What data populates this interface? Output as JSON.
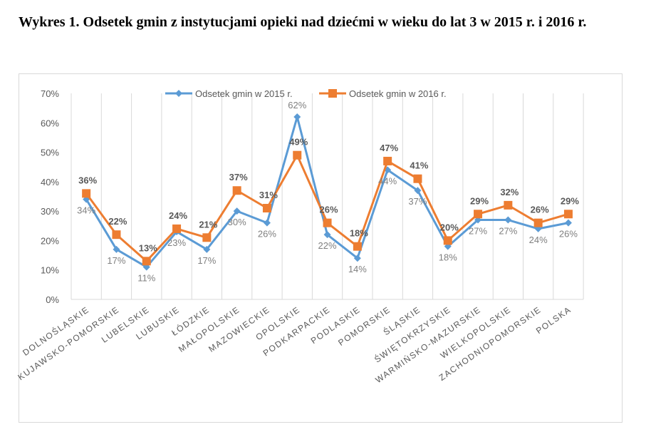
{
  "page": {
    "title": "Wykres 1. Odsetek gmin z instytucjami opieki nad dziećmi w wieku do lat 3 w 2015 r. i 2016 r."
  },
  "chart_data": {
    "type": "line",
    "title": "",
    "xlabel": "",
    "ylabel": "",
    "ylim": [
      0,
      70
    ],
    "y_ticks": [
      "0%",
      "10%",
      "20%",
      "30%",
      "40%",
      "50%",
      "60%",
      "70%"
    ],
    "grid": "vertical",
    "legend_position": "top",
    "categories": [
      "DOLNOŚLĄSKIE",
      "KUJAWSKO-POMORSKIE",
      "LUBELSKIE",
      "LUBUSKIE",
      "ŁÓDZKIE",
      "MAŁOPOLSKIE",
      "MAZOWIECKIE",
      "OPOLSKIE",
      "PODKARPACKIE",
      "PODLASKIE",
      "POMORSKIE",
      "ŚLĄSKIE",
      "ŚWIĘTOKRZYSKIE",
      "WARMIŃSKO-MAZURSKIE",
      "WIELKOPOLSKIE",
      "ZACHODNIOPOMORSKIE",
      "POLSKA"
    ],
    "series": [
      {
        "name": "Odsetek gmin w 2015 r.",
        "color": "#5b9bd5",
        "marker": "diamond",
        "values": [
          34,
          17,
          11,
          23,
          17,
          30,
          26,
          62,
          22,
          14,
          44,
          37,
          18,
          27,
          27,
          24,
          26
        ],
        "labels": [
          "34%",
          "17%",
          "11%",
          "23%",
          "17%",
          "30%",
          "26%",
          "62%",
          "22%",
          "14%",
          "44%",
          "37%",
          "18%",
          "27%",
          "27%",
          "24%",
          "26%"
        ]
      },
      {
        "name": "Odsetek gmin w 2016 r.",
        "color": "#ed7d31",
        "marker": "square",
        "values": [
          36,
          22,
          13,
          24,
          21,
          37,
          31,
          49,
          26,
          18,
          47,
          41,
          20,
          29,
          32,
          26,
          29
        ],
        "labels": [
          "36%",
          "22%",
          "13%",
          "24%",
          "21%",
          "37%",
          "31%",
          "49%",
          "26%",
          "18%",
          "47%",
          "41%",
          "20%",
          "29%",
          "32%",
          "26%",
          "29%"
        ]
      }
    ]
  }
}
